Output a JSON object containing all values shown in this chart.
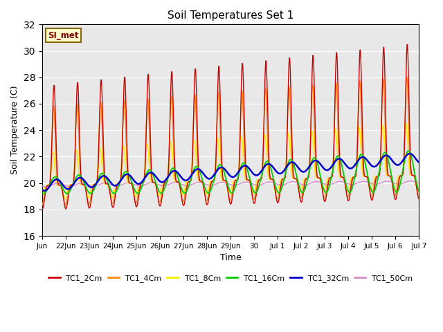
{
  "title": "Soil Temperatures Set 1",
  "xlabel": "Time",
  "ylabel": "Soil Temperature (C)",
  "ylim": [
    16,
    32
  ],
  "yticks": [
    16,
    18,
    20,
    22,
    24,
    26,
    28,
    30,
    32
  ],
  "series_labels": [
    "TC1_2Cm",
    "TC1_4Cm",
    "TC1_8Cm",
    "TC1_16Cm",
    "TC1_32Cm",
    "TC1_50Cm"
  ],
  "series_colors": [
    "#cc0000",
    "#ff8800",
    "#ffee00",
    "#00cc00",
    "#0000cc",
    "#dd88cc"
  ],
  "annotation_text": "SI_met",
  "annotation_bg": "#ffffcc",
  "annotation_border": "#886600",
  "annotation_text_color": "#880000",
  "bg_color": "#e8e8e8",
  "xtick_labels": [
    "Jun",
    "22Jun",
    "23Jun",
    "24Jun",
    "25Jun",
    "26Jun",
    "27Jun",
    "28Jun",
    "29Jun",
    "30",
    "Jul 1",
    "Jul 2",
    "Jul 3",
    "Jul 4",
    "Jul 5",
    "Jul 6",
    "Jul 7"
  ],
  "num_points": 2000
}
